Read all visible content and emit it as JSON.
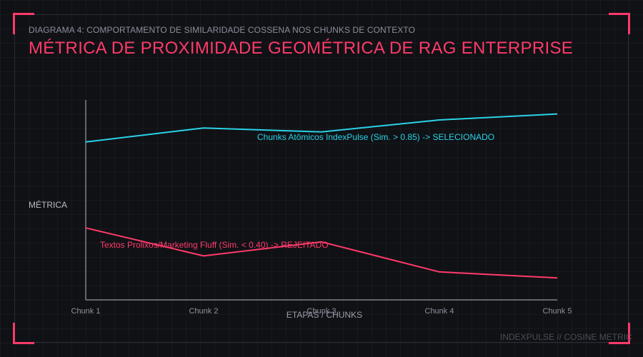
{
  "header": {
    "subtitle": "DIAGRAMA 4: COMPORTAMENTO DE SIMILARIDADE COSSENA NOS CHUNKS DE CONTEXTO",
    "title": "MÉTRICA DE PROXIMIDADE GEOMÉTRICA DE RAG ENTERPRISE"
  },
  "footer": "INDEXPULSE // COSINE METRIC",
  "colors": {
    "accent": "#ff3a6b",
    "cyan": "#29d3e6",
    "background": "#101115"
  },
  "chart_data": {
    "type": "line",
    "title": "MÉTRICA DE PROXIMIDADE GEOMÉTRICA DE RAG ENTERPRISE",
    "subtitle": "DIAGRAMA 4: COMPORTAMENTO DE SIMILARIDADE COSSENA NOS CHUNKS DE CONTEXTO",
    "xlabel": "ETAPAS / CHUNKS",
    "ylabel": "MÉTRICA",
    "categories": [
      "Chunk 1",
      "Chunk 2",
      "Chunk 3",
      "Chunk 4",
      "Chunk 5"
    ],
    "ylim": [
      0,
      1
    ],
    "grid": false,
    "series": [
      {
        "name": "Chunks Atômicos IndexPulse (Sim. > 0.85) -> SELECIONADO",
        "color": "#29d3e6",
        "values": [
          0.79,
          0.86,
          0.84,
          0.9,
          0.93
        ]
      },
      {
        "name": "Textos Prolixos/Marketing Fluff (Sim. < 0.40) -> REJEITADO",
        "color": "#ff3a6b",
        "values": [
          0.36,
          0.22,
          0.29,
          0.14,
          0.11
        ]
      }
    ]
  }
}
